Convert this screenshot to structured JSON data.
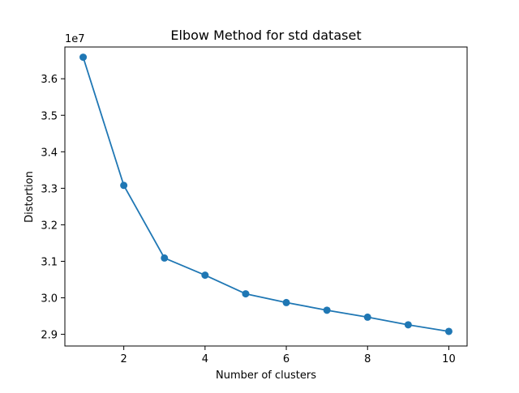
{
  "chart_data": {
    "type": "line",
    "title": "Elbow Method for std dataset",
    "xlabel": "Number of clusters",
    "ylabel": "Distortion",
    "y_offset_label": "1e7",
    "x": [
      1,
      2,
      3,
      4,
      5,
      6,
      7,
      8,
      9,
      10
    ],
    "series": [
      {
        "values": [
          36590000,
          33080000,
          31090000,
          30620000,
          30110000,
          29870000,
          29660000,
          29470000,
          29260000,
          29080000
        ],
        "color": "#1f77b4",
        "marker": "circle"
      }
    ],
    "xlim": [
      0.55,
      10.45
    ],
    "ylim": [
      28680000,
      36870000
    ],
    "x_ticks": [
      2,
      4,
      6,
      8,
      10
    ],
    "x_tick_labels": [
      "2",
      "4",
      "6",
      "8",
      "10"
    ],
    "y_ticks": [
      29000000,
      30000000,
      31000000,
      32000000,
      33000000,
      34000000,
      35000000,
      36000000
    ],
    "y_tick_labels": [
      "2.9",
      "3.0",
      "3.1",
      "3.2",
      "3.3",
      "3.4",
      "3.5",
      "3.6"
    ],
    "grid": false,
    "legend": "none"
  }
}
